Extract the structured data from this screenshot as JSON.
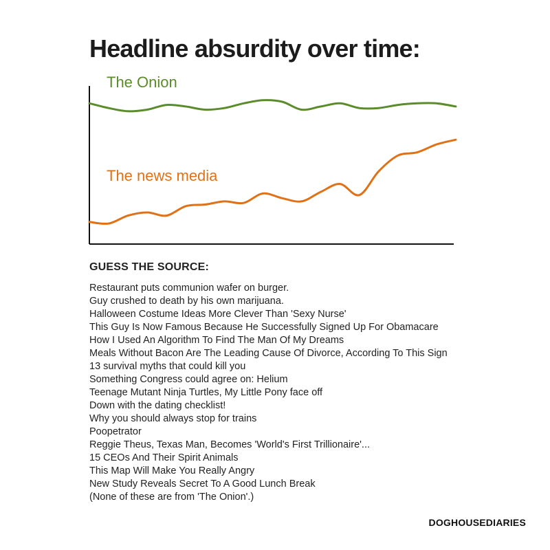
{
  "title": "Headline absurdity over time:",
  "chart_data": {
    "type": "line",
    "title": "Headline absurdity over time:",
    "xlabel": "",
    "ylabel": "",
    "grid": false,
    "legend": "inline labels above each line",
    "x": [
      0,
      1,
      2,
      3,
      4,
      5,
      6,
      7,
      8,
      9,
      10,
      11,
      12,
      13,
      14,
      15,
      16,
      17,
      18,
      19
    ],
    "ylim": [
      0,
      100
    ],
    "series": [
      {
        "name": "The Onion",
        "color": "#5b8c2a",
        "values": [
          89,
          86,
          84,
          85,
          88,
          87,
          85,
          86,
          89,
          91,
          90,
          85,
          87,
          89,
          86,
          86,
          88,
          89,
          89,
          87
        ]
      },
      {
        "name": "The news media",
        "color": "#e07116",
        "values": [
          14,
          13,
          18,
          20,
          18,
          24,
          25,
          27,
          26,
          32,
          29,
          27,
          33,
          38,
          31,
          46,
          56,
          58,
          63,
          66
        ]
      }
    ]
  },
  "guess": {
    "heading": "GUESS THE SOURCE:",
    "headlines": [
      "Restaurant puts communion wafer on burger.",
      "Guy crushed to death by his own marijuana.",
      "Halloween Costume Ideas More Clever Than 'Sexy Nurse'",
      "This Guy Is Now Famous Because He Successfully Signed Up For Obamacare",
      "How I Used An Algorithm To Find The Man Of My Dreams",
      "Meals Without Bacon Are The Leading Cause Of Divorce, According To This Sign",
      "13 survival myths that could kill you",
      "Something Congress could agree on: Helium",
      "Teenage Mutant Ninja Turtles, My Little Pony face off",
      "Down with the dating checklist!",
      "Why you should always stop for trains",
      "Poopetrator",
      "Reggie Theus, Texas Man, Becomes 'World's First Trillionaire'...",
      "15 CEOs And Their Spirit Animals",
      "This Map Will Make You Really Angry",
      "New Study Reveals Secret To A Good Lunch Break",
      "(None of these are from 'The Onion'.)"
    ]
  },
  "credit": "DOGHOUSEDIARIES"
}
